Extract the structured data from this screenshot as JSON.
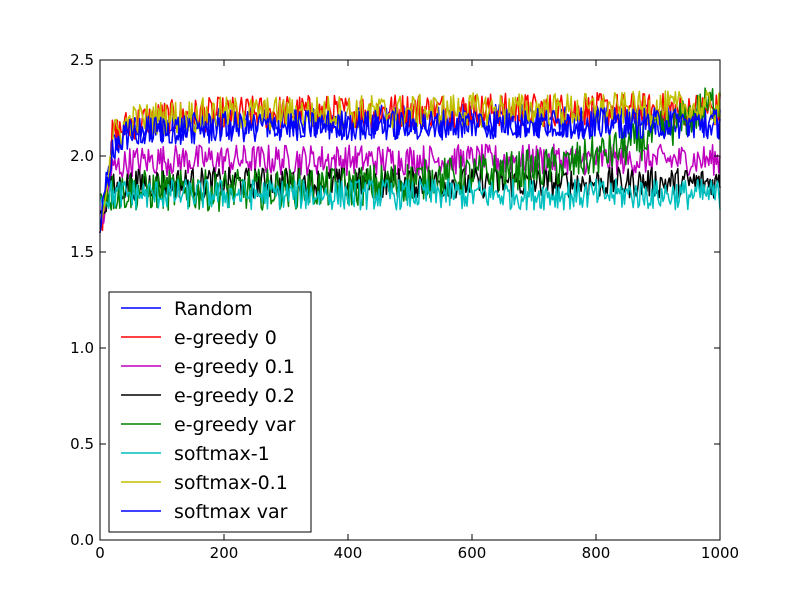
{
  "chart_data": {
    "type": "line",
    "title": "",
    "xlabel": "",
    "ylabel": "",
    "xlim": [
      0,
      1000
    ],
    "ylim": [
      0.0,
      2.5
    ],
    "x_ticks": [
      0,
      200,
      400,
      600,
      800,
      1000
    ],
    "x_tick_labels": [
      "0",
      "200",
      "400",
      "600",
      "800",
      "1000"
    ],
    "y_ticks": [
      0.0,
      0.5,
      1.0,
      1.5,
      2.0,
      2.5
    ],
    "y_tick_labels": [
      "0.0",
      "0.5",
      "1.0",
      "1.5",
      "2.0",
      "2.5"
    ],
    "grid": false,
    "legend_position": "lower-left",
    "series": [
      {
        "name": "Random",
        "color": "#0000ff",
        "x": [
          0,
          20,
          50,
          100,
          150,
          200,
          300,
          400,
          500,
          600,
          700,
          800,
          900,
          1000
        ],
        "y": [
          1.6,
          2.05,
          2.12,
          2.15,
          2.15,
          2.16,
          2.17,
          2.17,
          2.18,
          2.18,
          2.18,
          2.18,
          2.18,
          2.18
        ],
        "noise": 0.05
      },
      {
        "name": "e-greedy 0",
        "color": "#ff0000",
        "x": [
          0,
          20,
          50,
          100,
          150,
          200,
          300,
          400,
          500,
          600,
          700,
          800,
          900,
          1000
        ],
        "y": [
          1.6,
          2.1,
          2.17,
          2.2,
          2.21,
          2.22,
          2.23,
          2.23,
          2.24,
          2.24,
          2.24,
          2.24,
          2.24,
          2.24
        ],
        "noise": 0.05
      },
      {
        "name": "e-greedy 0.1",
        "color": "#bf00bf",
        "x": [
          0,
          20,
          50,
          100,
          200,
          300,
          400,
          500,
          600,
          700,
          800,
          900,
          1000
        ],
        "y": [
          1.6,
          1.93,
          1.97,
          1.98,
          1.98,
          1.98,
          1.98,
          1.98,
          1.98,
          1.98,
          1.98,
          1.98,
          1.98
        ],
        "noise": 0.045
      },
      {
        "name": "e-greedy 0.2",
        "color": "#000000",
        "x": [
          0,
          20,
          50,
          100,
          200,
          300,
          400,
          500,
          600,
          700,
          800,
          900,
          1000
        ],
        "y": [
          1.7,
          1.83,
          1.85,
          1.86,
          1.86,
          1.86,
          1.86,
          1.86,
          1.86,
          1.86,
          1.86,
          1.86,
          1.86
        ],
        "noise": 0.045
      },
      {
        "name": "e-greedy var",
        "color": "#008000",
        "x": [
          0,
          50,
          100,
          200,
          300,
          400,
          500,
          600,
          700,
          750,
          800,
          850,
          900,
          950,
          1000
        ],
        "y": [
          1.8,
          1.82,
          1.82,
          1.82,
          1.83,
          1.84,
          1.87,
          1.9,
          1.93,
          1.95,
          2.0,
          2.05,
          2.12,
          2.2,
          2.3
        ],
        "noise": 0.06
      },
      {
        "name": "softmax-1",
        "color": "#00bfbf",
        "x": [
          0,
          20,
          50,
          100,
          200,
          300,
          400,
          500,
          600,
          700,
          800,
          900,
          1000
        ],
        "y": [
          1.78,
          1.8,
          1.8,
          1.8,
          1.8,
          1.8,
          1.8,
          1.8,
          1.8,
          1.8,
          1.8,
          1.8,
          1.8
        ],
        "noise": 0.045
      },
      {
        "name": "softmax-0.1",
        "color": "#bfbf00",
        "x": [
          0,
          20,
          50,
          100,
          150,
          200,
          300,
          400,
          500,
          600,
          700,
          800,
          900,
          1000
        ],
        "y": [
          1.6,
          2.1,
          2.18,
          2.2,
          2.21,
          2.22,
          2.22,
          2.23,
          2.23,
          2.24,
          2.24,
          2.24,
          2.25,
          2.25
        ],
        "noise": 0.05
      },
      {
        "name": "softmax var",
        "color": "#0000ff",
        "x": [
          0,
          20,
          50,
          100,
          200,
          300,
          400,
          500,
          600,
          700,
          800,
          900,
          1000
        ],
        "y": [
          1.6,
          2.05,
          2.12,
          2.14,
          2.15,
          2.16,
          2.16,
          2.16,
          2.17,
          2.17,
          2.17,
          2.17,
          2.17
        ],
        "noise": 0.045
      }
    ]
  }
}
